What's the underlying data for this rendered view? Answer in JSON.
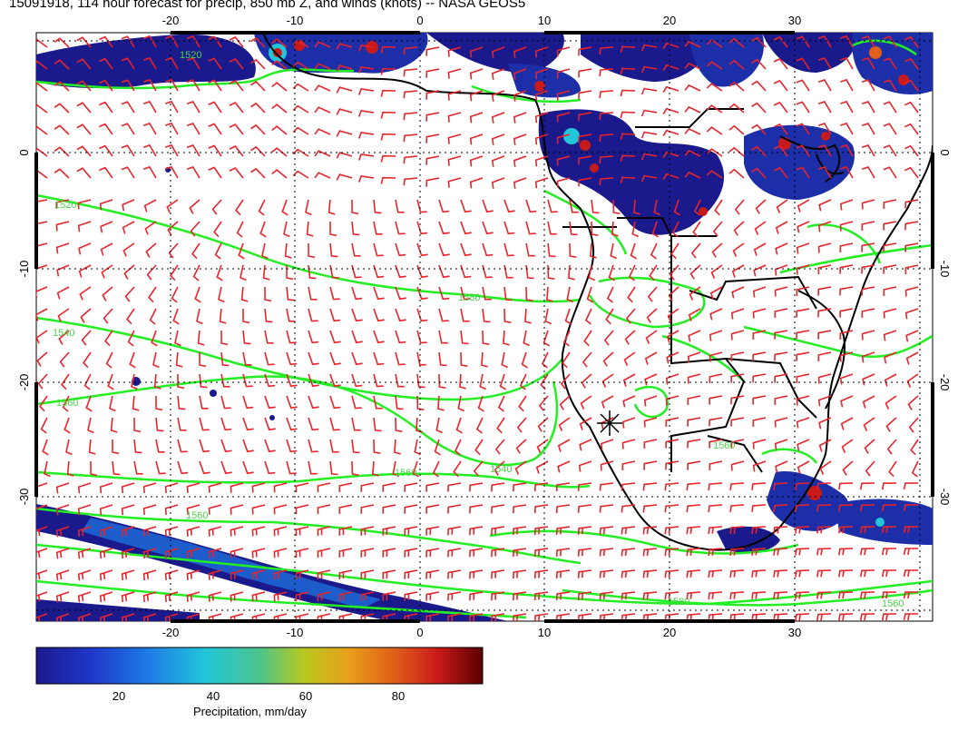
{
  "title": "15091918, 114 hour forecast for precip, 850 mb Z, and winds (knots) -- NASA GEOS5",
  "map": {
    "lon_ticks": [
      "-20",
      "-10",
      "0",
      "10",
      "20",
      "30"
    ],
    "lat_ticks": [
      "0",
      "-10",
      "-20",
      "-30"
    ],
    "contour_labels": [
      "1520",
      "1520",
      "1540",
      "1560",
      "1560",
      "1560",
      "1540",
      "1560",
      "1580",
      "1560",
      "1580"
    ],
    "colors": {
      "wind_barbs": "#e8232a",
      "contours": "#22ee22",
      "coastlines": "#000000",
      "precip_low": "#1a1a8c",
      "precip_high": "#7a0000"
    }
  },
  "colorbar": {
    "title": "Precipitation, mm/day",
    "ticks": [
      "20",
      "40",
      "60",
      "80"
    ],
    "min": 0,
    "max": 98
  }
}
